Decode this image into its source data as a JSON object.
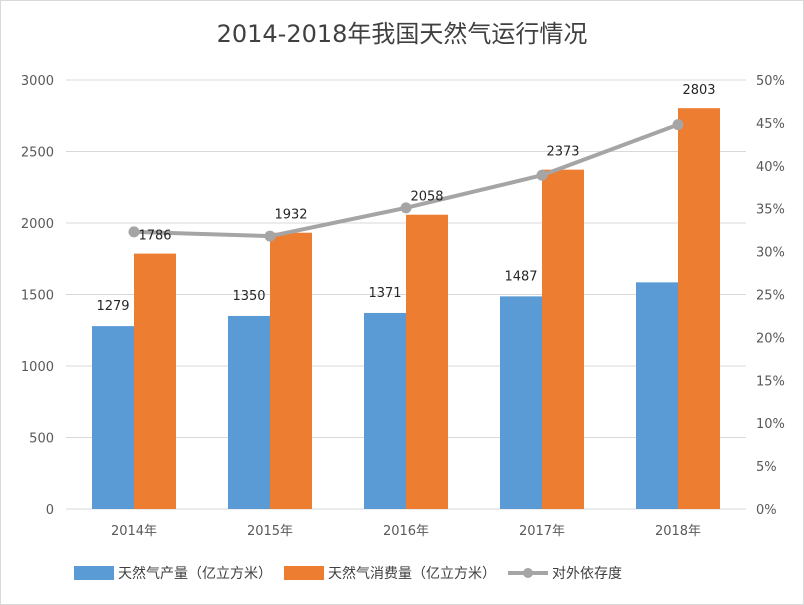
{
  "chart_data": {
    "type": "bar",
    "title": "2014-2018年我国天然气运行情况",
    "categories": [
      "2014年",
      "2015年",
      "2016年",
      "2017年",
      "2018年"
    ],
    "y_left": {
      "ylim": [
        0,
        3000
      ],
      "ticks": [
        "0",
        "500",
        "1000",
        "1500",
        "2000",
        "2500",
        "3000"
      ]
    },
    "y_right": {
      "ylim": [
        0,
        50
      ],
      "ticks": [
        "0%",
        "5%",
        "10%",
        "15%",
        "20%",
        "25%",
        "30%",
        "35%",
        "40%",
        "45%",
        "50%"
      ]
    },
    "series": [
      {
        "name": "天然气产量（亿立方米）",
        "type": "bar",
        "axis": "left",
        "color": "#5b9bd5",
        "values": [
          1279,
          1350,
          1371,
          1487,
          1585
        ],
        "labels": [
          "1279",
          "1350",
          "1371",
          "1487",
          ""
        ]
      },
      {
        "name": "天然气消费量（亿立方米）",
        "type": "bar",
        "axis": "left",
        "color": "#ed7d31",
        "values": [
          1786,
          1932,
          2058,
          2373,
          2803
        ],
        "labels": [
          "1786",
          "1932",
          "2058",
          "2373",
          "2803"
        ]
      },
      {
        "name": "对外依存度",
        "type": "line",
        "axis": "right",
        "color": "#a5a5a5",
        "values": [
          32.3,
          31.8,
          35.1,
          38.9,
          44.8
        ]
      }
    ],
    "grid": true,
    "legend": "bottom"
  }
}
